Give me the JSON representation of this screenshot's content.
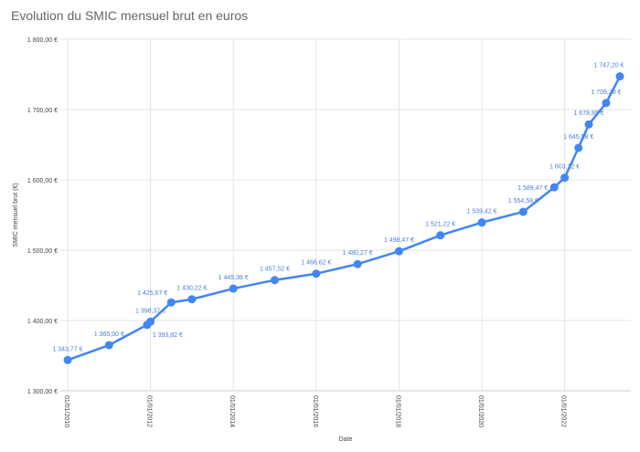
{
  "chart_data": {
    "type": "line",
    "title": "Evolution du SMIC mensuel brut en euros",
    "xlabel": "Date",
    "ylabel": "SMIC mensuel brut (€)",
    "ylim": [
      1300,
      1800
    ],
    "yticks": [
      "1 300,00 €",
      "1 400,00 €",
      "1 500,00 €",
      "1 600,00 €",
      "1 700,00 €",
      "1 800,00 €"
    ],
    "xticks": [
      "01/01/2010",
      "01/01/2012",
      "01/01/2014",
      "01/01/2016",
      "01/01/2018",
      "01/01/2020",
      "01/01/2022"
    ],
    "grid": true,
    "color": "#4285f4",
    "points": [
      {
        "date": "2010-01-01",
        "value": 1343.77,
        "label": "1 343,77 €"
      },
      {
        "date": "2011-01-01",
        "value": 1365.0,
        "label": "1 365,00 €"
      },
      {
        "date": "2011-12-01",
        "value": 1393.82,
        "label": "1 393,82 €"
      },
      {
        "date": "2012-01-01",
        "value": 1398.37,
        "label": "1 398,37 €"
      },
      {
        "date": "2012-07-01",
        "value": 1425.67,
        "label": "1 425,67 €"
      },
      {
        "date": "2013-01-01",
        "value": 1430.22,
        "label": "1 430,22 €"
      },
      {
        "date": "2014-01-01",
        "value": 1445.38,
        "label": "1 445,38 €"
      },
      {
        "date": "2015-01-01",
        "value": 1457.52,
        "label": "1 457,52 €"
      },
      {
        "date": "2016-01-01",
        "value": 1466.62,
        "label": "1 466,62 €"
      },
      {
        "date": "2017-01-01",
        "value": 1480.27,
        "label": "1 480,27 €"
      },
      {
        "date": "2018-01-01",
        "value": 1498.47,
        "label": "1 498,47 €"
      },
      {
        "date": "2019-01-01",
        "value": 1521.22,
        "label": "1 521,22 €"
      },
      {
        "date": "2020-01-01",
        "value": 1539.42,
        "label": "1 539,42 €"
      },
      {
        "date": "2021-01-01",
        "value": 1554.58,
        "label": "1 554,58 €"
      },
      {
        "date": "2021-10-01",
        "value": 1589.47,
        "label": "1 589,47 €"
      },
      {
        "date": "2022-01-01",
        "value": 1603.12,
        "label": "1 603,12 €"
      },
      {
        "date": "2022-05-01",
        "value": 1645.58,
        "label": "1 645,58 €"
      },
      {
        "date": "2022-08-01",
        "value": 1678.95,
        "label": "1 678,95 €"
      },
      {
        "date": "2023-01-01",
        "value": 1709.28,
        "label": "1 709,28 €"
      },
      {
        "date": "2023-05-01",
        "value": 1747.2,
        "label": "1 747,20 €"
      }
    ]
  }
}
